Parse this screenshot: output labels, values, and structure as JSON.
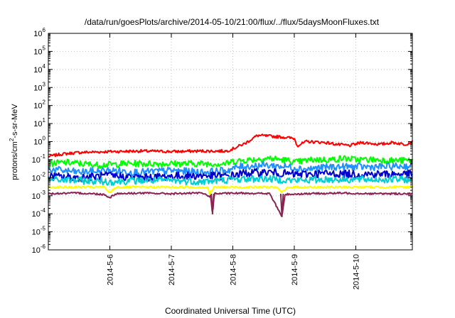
{
  "chart_data": {
    "type": "line",
    "title": "/data/run/goesPlots/archive/2014-05-10/21:00/flux/../flux/5daysMoonFluxes.txt",
    "xlabel": "Coordinated Universal Time (UTC)",
    "ylabel": "protons/cm2-s-sr-MeV",
    "ylabel_base": "protons/cm",
    "ylabel_sup": "2",
    "ylabel_rest": "-s-sr-MeV",
    "yscale": "log",
    "ylim_exp": [
      -6,
      6
    ],
    "ytick_exps": [
      "-6",
      "-5",
      "-4",
      "-3",
      "-2",
      "-1",
      "0",
      "1",
      "2",
      "3",
      "4",
      "5",
      "6"
    ],
    "ytick_base": "10",
    "xlim_days": [
      5.0,
      10.92
    ],
    "xticks": [
      {
        "day": 6,
        "label": "2014-5-6"
      },
      {
        "day": 7,
        "label": "2014-5-7"
      },
      {
        "day": 8,
        "label": "2014-5-8"
      },
      {
        "day": 9,
        "label": "2014-5-9"
      },
      {
        "day": 10,
        "label": "2014-5-10"
      }
    ],
    "grid": true,
    "legend": "none",
    "series": [
      {
        "color": "#ff0000",
        "points": [
          [
            5.0,
            0.15
          ],
          [
            5.2,
            0.2
          ],
          [
            5.5,
            0.25
          ],
          [
            6.0,
            0.28
          ],
          [
            6.5,
            0.3
          ],
          [
            7.0,
            0.28
          ],
          [
            7.5,
            0.3
          ],
          [
            7.9,
            0.3
          ],
          [
            8.0,
            0.4
          ],
          [
            8.2,
            0.8
          ],
          [
            8.4,
            2.2
          ],
          [
            8.6,
            2.0
          ],
          [
            8.8,
            1.8
          ],
          [
            9.0,
            1.5
          ],
          [
            9.05,
            0.6
          ],
          [
            9.2,
            1.0
          ],
          [
            9.5,
            0.9
          ],
          [
            9.7,
            0.7
          ],
          [
            9.9,
            0.6
          ],
          [
            10.1,
            0.9
          ],
          [
            10.4,
            0.7
          ],
          [
            10.6,
            0.9
          ],
          [
            10.8,
            0.7
          ],
          [
            10.92,
            1.0
          ]
        ]
      },
      {
        "color": "#00ff00",
        "points": [
          [
            5.0,
            0.06
          ],
          [
            5.3,
            0.07
          ],
          [
            5.8,
            0.05
          ],
          [
            6.3,
            0.06
          ],
          [
            6.8,
            0.06
          ],
          [
            7.3,
            0.06
          ],
          [
            7.9,
            0.06
          ],
          [
            8.0,
            0.08
          ],
          [
            8.3,
            0.1
          ],
          [
            8.6,
            0.12
          ],
          [
            8.9,
            0.09
          ],
          [
            9.0,
            0.07
          ],
          [
            9.3,
            0.1
          ],
          [
            9.6,
            0.1
          ],
          [
            9.8,
            0.12
          ],
          [
            10.0,
            0.1
          ],
          [
            10.3,
            0.1
          ],
          [
            10.6,
            0.09
          ],
          [
            10.92,
            0.09
          ]
        ]
      },
      {
        "color": "#1e90ff",
        "points": [
          [
            5.0,
            0.03
          ],
          [
            5.5,
            0.02
          ],
          [
            6.0,
            0.025
          ],
          [
            6.5,
            0.02
          ],
          [
            7.0,
            0.025
          ],
          [
            7.5,
            0.02
          ],
          [
            7.9,
            0.025
          ],
          [
            8.1,
            0.04
          ],
          [
            8.5,
            0.05
          ],
          [
            8.9,
            0.04
          ],
          [
            9.2,
            0.03
          ],
          [
            9.6,
            0.04
          ],
          [
            10.0,
            0.04
          ],
          [
            10.4,
            0.04
          ],
          [
            10.92,
            0.045
          ]
        ]
      },
      {
        "color": "#0000cd",
        "points": [
          [
            5.0,
            0.012
          ],
          [
            5.5,
            0.01
          ],
          [
            6.0,
            0.013
          ],
          [
            6.5,
            0.01
          ],
          [
            7.0,
            0.012
          ],
          [
            7.5,
            0.013
          ],
          [
            7.9,
            0.012
          ],
          [
            8.2,
            0.018
          ],
          [
            8.6,
            0.02
          ],
          [
            9.0,
            0.015
          ],
          [
            9.4,
            0.017
          ],
          [
            9.8,
            0.016
          ],
          [
            10.2,
            0.016
          ],
          [
            10.6,
            0.016
          ],
          [
            10.92,
            0.016
          ]
        ]
      },
      {
        "color": "#00ced1",
        "points": [
          [
            5.0,
            0.008
          ],
          [
            5.5,
            0.007
          ],
          [
            6.0,
            0.006
          ],
          [
            6.5,
            0.007
          ],
          [
            7.0,
            0.007
          ],
          [
            7.5,
            0.006
          ],
          [
            8.0,
            0.008
          ],
          [
            8.5,
            0.009
          ],
          [
            9.0,
            0.007
          ],
          [
            9.5,
            0.008
          ],
          [
            10.0,
            0.008
          ],
          [
            10.5,
            0.008
          ],
          [
            10.92,
            0.008
          ]
        ]
      },
      {
        "color": "#ffff00",
        "points": [
          [
            5.0,
            0.003
          ],
          [
            5.5,
            0.003
          ],
          [
            5.9,
            0.003
          ],
          [
            6.0,
            0.0015
          ],
          [
            6.1,
            0.003
          ],
          [
            6.5,
            0.003
          ],
          [
            7.0,
            0.003
          ],
          [
            7.6,
            0.003
          ],
          [
            7.62,
            0.0012
          ],
          [
            7.7,
            0.003
          ],
          [
            8.2,
            0.003
          ],
          [
            8.7,
            0.003
          ],
          [
            8.8,
            0.0015
          ],
          [
            8.9,
            0.003
          ],
          [
            9.5,
            0.003
          ],
          [
            10.0,
            0.003
          ],
          [
            10.5,
            0.003
          ],
          [
            10.92,
            0.003
          ]
        ]
      },
      {
        "color": "#8b2252",
        "points": [
          [
            5.0,
            0.0013
          ],
          [
            5.5,
            0.0014
          ],
          [
            5.9,
            0.0012
          ],
          [
            6.0,
            0.0008
          ],
          [
            6.1,
            0.0013
          ],
          [
            6.5,
            0.0014
          ],
          [
            7.0,
            0.0013
          ],
          [
            7.5,
            0.0014
          ],
          [
            7.64,
            0.0009
          ],
          [
            7.67,
            0.0001
          ],
          [
            7.7,
            0.0013
          ],
          [
            8.2,
            0.0014
          ],
          [
            8.6,
            0.0013
          ],
          [
            8.8,
            7e-05
          ],
          [
            8.85,
            0.0012
          ],
          [
            9.2,
            0.0013
          ],
          [
            9.8,
            0.0014
          ],
          [
            10.3,
            0.0013
          ],
          [
            10.92,
            0.0013
          ]
        ]
      }
    ]
  }
}
